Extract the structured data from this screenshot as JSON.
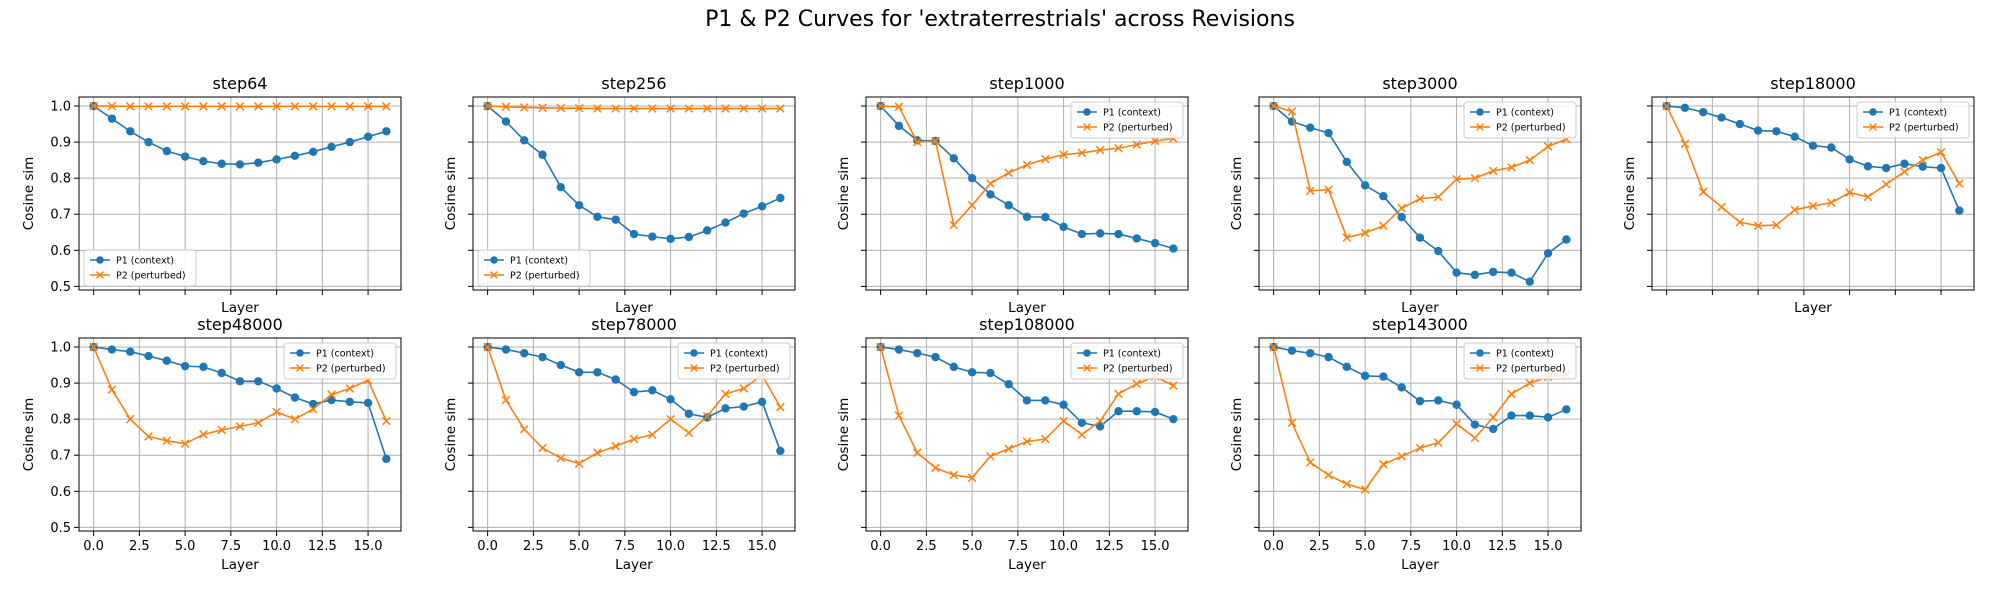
{
  "figure_title": "P1 & P2 Curves for 'extraterrestrials' across Revisions",
  "colors": {
    "p1": "#1f77b4",
    "p2": "#ff7f0e",
    "grid": "#b0b0b0"
  },
  "chart_data": {
    "type": "line",
    "title": "P1 & P2 Curves for 'extraterrestrials' across Revisions",
    "layout": "2 rows x 5 columns, shared y axis per row, shared x axis per column",
    "x": [
      0,
      1,
      2,
      3,
      4,
      5,
      6,
      7,
      8,
      9,
      10,
      11,
      12,
      13,
      14,
      15,
      16
    ],
    "xlabel": "Layer",
    "ylabel": "Cosine sim",
    "xlim": [
      -0.8,
      16.8
    ],
    "ylim": [
      0.49,
      1.025
    ],
    "xticks": [
      "0.0",
      "2.5",
      "5.0",
      "7.5",
      "10.0",
      "12.5",
      "15.0"
    ],
    "xtick_values": [
      0,
      2.5,
      5,
      7.5,
      10,
      12.5,
      15
    ],
    "yticks": [
      "0.5",
      "0.6",
      "0.7",
      "0.8",
      "0.9",
      "1.0"
    ],
    "ytick_values": [
      0.5,
      0.6,
      0.7,
      0.8,
      0.9,
      1.0
    ],
    "grid": true,
    "series_names": [
      "P1 (context)",
      "P2 (perturbed)"
    ],
    "subplots": [
      {
        "title": "step64",
        "legend": "lower-left",
        "series": [
          {
            "name": "P1 (context)",
            "marker": "circle",
            "values": [
              1.0,
              0.965,
              0.93,
              0.9,
              0.875,
              0.86,
              0.847,
              0.84,
              0.838,
              0.843,
              0.852,
              0.862,
              0.873,
              0.887,
              0.9,
              0.915,
              0.93
            ]
          },
          {
            "name": "P2 (perturbed)",
            "marker": "x",
            "values": [
              1.0,
              1.0,
              0.999,
              0.999,
              0.999,
              0.999,
              0.999,
              0.999,
              0.999,
              0.999,
              0.999,
              0.999,
              0.999,
              0.999,
              0.999,
              0.999,
              0.999
            ]
          }
        ]
      },
      {
        "title": "step256",
        "legend": "lower-left",
        "series": [
          {
            "name": "P1 (context)",
            "marker": "circle",
            "values": [
              1.0,
              0.957,
              0.905,
              0.865,
              0.775,
              0.725,
              0.693,
              0.685,
              0.645,
              0.638,
              0.632,
              0.637,
              0.655,
              0.677,
              0.702,
              0.722,
              0.745
            ]
          },
          {
            "name": "P2 (perturbed)",
            "marker": "x",
            "values": [
              1.0,
              0.998,
              0.996,
              0.995,
              0.994,
              0.994,
              0.993,
              0.993,
              0.993,
              0.993,
              0.993,
              0.993,
              0.993,
              0.993,
              0.993,
              0.993,
              0.993
            ]
          }
        ]
      },
      {
        "title": "step1000",
        "legend": "upper-right",
        "series": [
          {
            "name": "P1 (context)",
            "marker": "circle",
            "values": [
              1.0,
              0.945,
              0.905,
              0.903,
              0.855,
              0.8,
              0.755,
              0.725,
              0.693,
              0.692,
              0.665,
              0.645,
              0.647,
              0.645,
              0.633,
              0.62,
              0.605
            ]
          },
          {
            "name": "P2 (perturbed)",
            "marker": "x",
            "values": [
              1.0,
              0.998,
              0.9,
              0.903,
              0.67,
              0.725,
              0.785,
              0.815,
              0.837,
              0.853,
              0.865,
              0.87,
              0.878,
              0.883,
              0.893,
              0.903,
              0.91
            ]
          }
        ]
      },
      {
        "title": "step3000",
        "legend": "upper-right",
        "series": [
          {
            "name": "P1 (context)",
            "marker": "circle",
            "values": [
              1.0,
              0.957,
              0.94,
              0.925,
              0.845,
              0.78,
              0.75,
              0.692,
              0.635,
              0.598,
              0.538,
              0.532,
              0.54,
              0.538,
              0.513,
              0.592,
              0.63
            ]
          },
          {
            "name": "P2 (perturbed)",
            "marker": "x",
            "values": [
              1.0,
              0.985,
              0.765,
              0.768,
              0.635,
              0.648,
              0.668,
              0.717,
              0.743,
              0.748,
              0.797,
              0.8,
              0.82,
              0.83,
              0.85,
              0.888,
              0.908
            ]
          }
        ]
      },
      {
        "title": "step18000",
        "legend": "upper-right",
        "series": [
          {
            "name": "P1 (context)",
            "marker": "circle",
            "values": [
              1.0,
              0.995,
              0.983,
              0.968,
              0.95,
              0.932,
              0.93,
              0.915,
              0.89,
              0.885,
              0.852,
              0.833,
              0.828,
              0.84,
              0.832,
              0.828,
              0.71
            ]
          },
          {
            "name": "P2 (perturbed)",
            "marker": "x",
            "values": [
              1.0,
              0.895,
              0.762,
              0.72,
              0.678,
              0.668,
              0.67,
              0.712,
              0.723,
              0.732,
              0.76,
              0.748,
              0.783,
              0.818,
              0.85,
              0.872,
              0.785
            ]
          }
        ]
      },
      {
        "title": "step48000",
        "legend": "upper-right",
        "series": [
          {
            "name": "P1 (context)",
            "marker": "circle",
            "values": [
              1.0,
              0.993,
              0.987,
              0.975,
              0.962,
              0.947,
              0.945,
              0.928,
              0.905,
              0.905,
              0.885,
              0.86,
              0.842,
              0.853,
              0.848,
              0.845,
              0.69
            ]
          },
          {
            "name": "P2 (perturbed)",
            "marker": "x",
            "values": [
              1.0,
              0.882,
              0.8,
              0.752,
              0.74,
              0.732,
              0.758,
              0.77,
              0.78,
              0.79,
              0.82,
              0.8,
              0.828,
              0.868,
              0.885,
              0.908,
              0.795
            ]
          }
        ]
      },
      {
        "title": "step78000",
        "legend": "upper-right",
        "series": [
          {
            "name": "P1 (context)",
            "marker": "circle",
            "values": [
              1.0,
              0.993,
              0.983,
              0.972,
              0.95,
              0.93,
              0.93,
              0.91,
              0.875,
              0.88,
              0.855,
              0.815,
              0.805,
              0.83,
              0.835,
              0.848,
              0.712
            ]
          },
          {
            "name": "P2 (perturbed)",
            "marker": "x",
            "values": [
              1.0,
              0.853,
              0.772,
              0.72,
              0.692,
              0.677,
              0.707,
              0.725,
              0.745,
              0.757,
              0.8,
              0.762,
              0.808,
              0.87,
              0.885,
              0.922,
              0.833
            ]
          }
        ]
      },
      {
        "title": "step108000",
        "legend": "upper-right",
        "series": [
          {
            "name": "P1 (context)",
            "marker": "circle",
            "values": [
              1.0,
              0.993,
              0.983,
              0.972,
              0.945,
              0.93,
              0.928,
              0.897,
              0.852,
              0.852,
              0.84,
              0.79,
              0.78,
              0.822,
              0.822,
              0.82,
              0.8
            ]
          },
          {
            "name": "P2 (perturbed)",
            "marker": "x",
            "values": [
              1.0,
              0.81,
              0.707,
              0.665,
              0.645,
              0.638,
              0.697,
              0.718,
              0.738,
              0.745,
              0.795,
              0.757,
              0.795,
              0.87,
              0.898,
              0.918,
              0.893
            ]
          }
        ]
      },
      {
        "title": "step143000",
        "legend": "upper-right",
        "series": [
          {
            "name": "P1 (context)",
            "marker": "circle",
            "values": [
              1.0,
              0.99,
              0.983,
              0.972,
              0.945,
              0.92,
              0.918,
              0.888,
              0.85,
              0.852,
              0.84,
              0.785,
              0.773,
              0.81,
              0.81,
              0.805,
              0.827
            ]
          },
          {
            "name": "P2 (perturbed)",
            "marker": "x",
            "values": [
              1.0,
              0.79,
              0.68,
              0.645,
              0.62,
              0.605,
              0.675,
              0.697,
              0.72,
              0.735,
              0.787,
              0.748,
              0.805,
              0.87,
              0.9,
              0.917,
              0.922
            ]
          }
        ]
      }
    ]
  }
}
